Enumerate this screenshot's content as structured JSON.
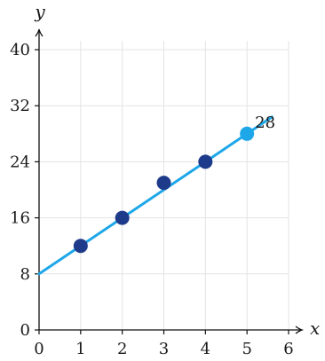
{
  "chart_data": {
    "type": "scatter",
    "xlabel": "x",
    "ylabel": "y",
    "xlim": [
      0,
      6
    ],
    "ylim": [
      0,
      40
    ],
    "x_ticks": [
      0,
      1,
      2,
      3,
      4,
      5,
      6
    ],
    "y_ticks": [
      0,
      8,
      16,
      24,
      32,
      40
    ],
    "grid": true,
    "points": [
      {
        "x": 1,
        "y": 12
      },
      {
        "x": 2,
        "y": 16
      },
      {
        "x": 3,
        "y": 21
      },
      {
        "x": 4,
        "y": 24
      },
      {
        "x": 5,
        "y": 28,
        "highlight": true,
        "label": "28"
      }
    ],
    "trend_line": {
      "intercept": 8,
      "slope": 4,
      "x_range": [
        0,
        5.6
      ]
    },
    "colors": {
      "point": "#1e3a8a",
      "highlight": "#1ea7e8",
      "line": "#1ea7e8",
      "grid": "#e3e3e3",
      "axis": "#111111"
    }
  }
}
